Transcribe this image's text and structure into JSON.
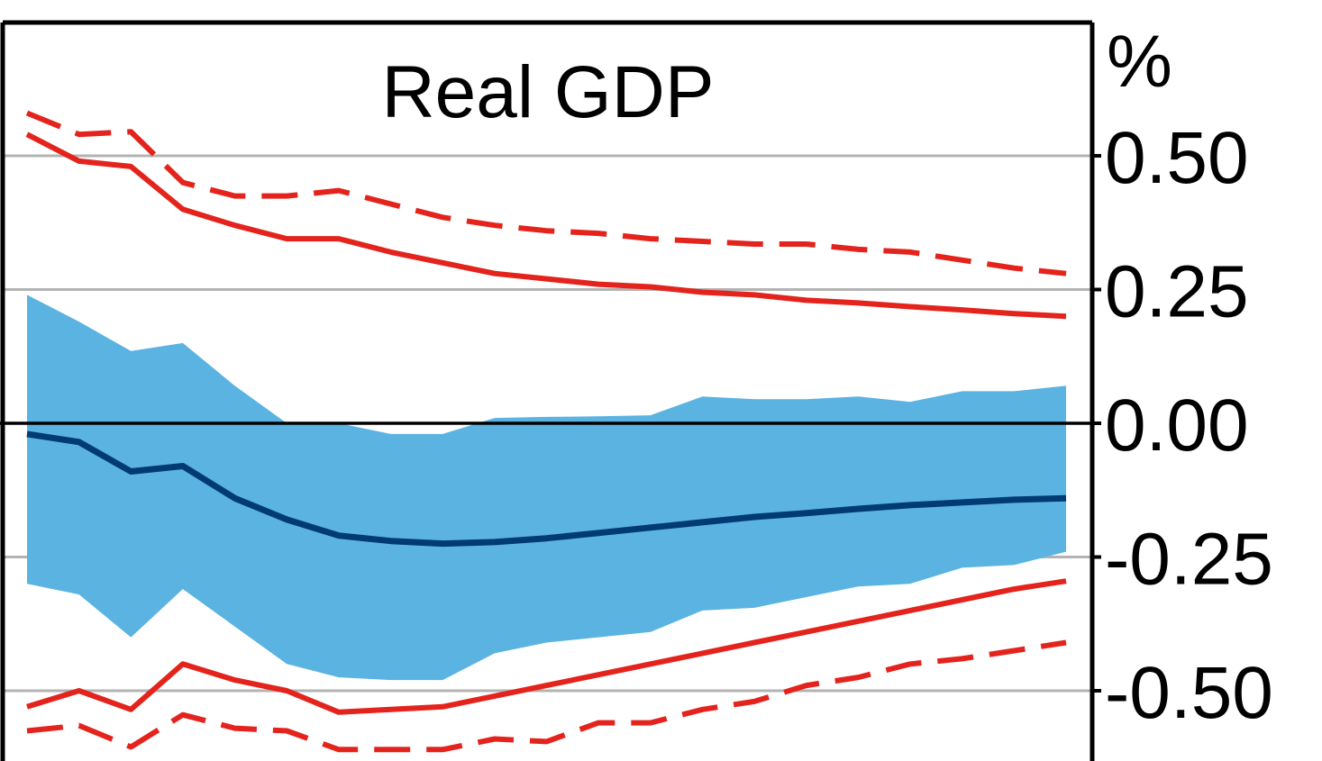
{
  "chart_data": {
    "type": "line",
    "title": "Real GDP",
    "ylabel": "%",
    "ylim": [
      -0.62,
      0.75
    ],
    "yticks": [
      0.5,
      0.25,
      0.0,
      -0.25,
      -0.5
    ],
    "ytick_labels": [
      "0.50",
      "0.25",
      "0.00",
      "-0.25",
      "-0.50"
    ],
    "grid": true,
    "x": [
      1,
      2,
      3,
      4,
      5,
      6,
      7,
      8,
      9,
      10,
      11,
      12,
      13,
      14,
      15,
      16,
      17,
      18,
      19,
      20,
      21
    ],
    "band": {
      "upper": [
        0.24,
        0.19,
        0.135,
        0.15,
        0.07,
        0.0,
        0.0,
        -0.02,
        -0.02,
        0.01,
        0.012,
        0.013,
        0.015,
        0.05,
        0.045,
        0.045,
        0.05,
        0.04,
        0.06,
        0.06,
        0.07
      ],
      "lower": [
        -0.3,
        -0.32,
        -0.4,
        -0.31,
        -0.38,
        -0.45,
        -0.475,
        -0.48,
        -0.48,
        -0.43,
        -0.41,
        -0.4,
        -0.39,
        -0.35,
        -0.345,
        -0.325,
        -0.305,
        -0.3,
        -0.27,
        -0.265,
        -0.24
      ],
      "color": "#5bb3e2"
    },
    "series": [
      {
        "values": [
          -0.02,
          -0.035,
          -0.09,
          -0.08,
          -0.14,
          -0.18,
          -0.21,
          -0.22,
          -0.225,
          -0.222,
          -0.215,
          -0.205,
          -0.195,
          -0.185,
          -0.175,
          -0.168,
          -0.16,
          -0.153,
          -0.148,
          -0.143,
          -0.14
        ],
        "color": "#003b73",
        "style": "solid"
      },
      {
        "values": [
          0.54,
          0.49,
          0.48,
          0.4,
          0.37,
          0.345,
          0.345,
          0.32,
          0.3,
          0.28,
          0.27,
          0.26,
          0.255,
          0.245,
          0.24,
          0.23,
          0.225,
          0.218,
          0.212,
          0.205,
          0.2
        ],
        "color": "#e3231c",
        "style": "solid"
      },
      {
        "values": [
          -0.53,
          -0.5,
          -0.535,
          -0.45,
          -0.48,
          -0.5,
          -0.54,
          -0.535,
          -0.53,
          -0.51,
          -0.49,
          -0.47,
          -0.45,
          -0.43,
          -0.41,
          -0.39,
          -0.37,
          -0.35,
          -0.33,
          -0.31,
          -0.295
        ],
        "color": "#e3231c",
        "style": "solid"
      },
      {
        "values": [
          0.58,
          0.54,
          0.545,
          0.45,
          0.425,
          0.425,
          0.435,
          0.41,
          0.385,
          0.37,
          0.36,
          0.355,
          0.345,
          0.34,
          0.335,
          0.335,
          0.325,
          0.32,
          0.305,
          0.29,
          0.28
        ],
        "color": "#e3231c",
        "style": "dashed"
      },
      {
        "values": [
          -0.575,
          -0.565,
          -0.605,
          -0.545,
          -0.57,
          -0.575,
          -0.61,
          -0.61,
          -0.61,
          -0.59,
          -0.595,
          -0.56,
          -0.56,
          -0.535,
          -0.52,
          -0.49,
          -0.475,
          -0.45,
          -0.44,
          -0.425,
          -0.41
        ],
        "color": "#e3231c",
        "style": "dashed"
      }
    ],
    "colors": {
      "grid": "#b3b3b3",
      "axis": "#000000",
      "zero_line": "#000000"
    }
  }
}
